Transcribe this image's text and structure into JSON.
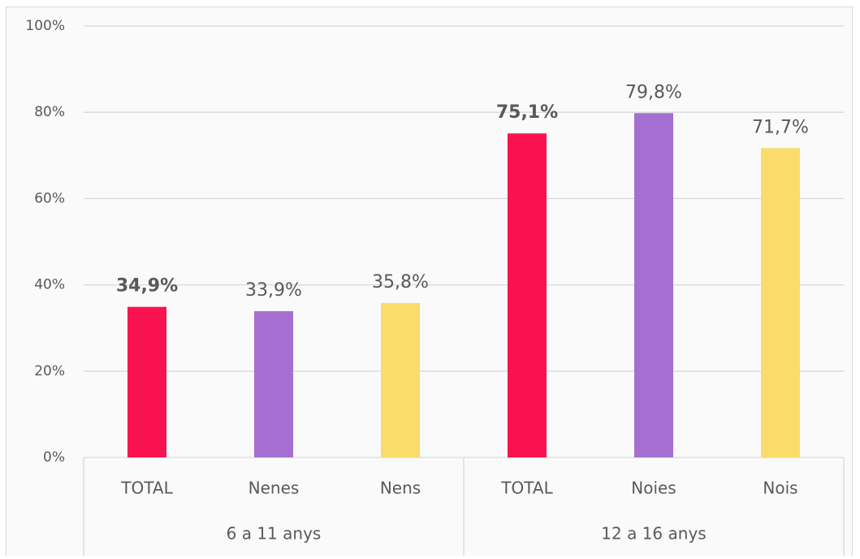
{
  "chart_data": {
    "type": "bar",
    "categories": [
      "TOTAL",
      "Nenes",
      "Nens",
      "TOTAL",
      "Noies",
      "Nois"
    ],
    "groups": [
      {
        "label": "6 a 11 anys",
        "span": 3
      },
      {
        "label": "12 a 16 anys",
        "span": 3
      }
    ],
    "values": [
      34.9,
      33.9,
      35.8,
      75.1,
      79.8,
      71.7
    ],
    "value_labels": [
      "34,9%",
      "33,9%",
      "35,8%",
      "75,1%",
      "79,8%",
      "71,7%"
    ],
    "value_label_bold": [
      true,
      false,
      false,
      true,
      false,
      false
    ],
    "colors": [
      "#f81350",
      "#a56fd2",
      "#f9dc6b",
      "#f81350",
      "#a56fd2",
      "#f9dc6b"
    ],
    "ylim": [
      0,
      100
    ],
    "yticks": [
      {
        "value": 0,
        "label": "0%"
      },
      {
        "value": 20,
        "label": "20%"
      },
      {
        "value": 40,
        "label": "40%"
      },
      {
        "value": 60,
        "label": "60%"
      },
      {
        "value": 80,
        "label": "80%"
      },
      {
        "value": 100,
        "label": "100%"
      }
    ],
    "grid": true
  }
}
